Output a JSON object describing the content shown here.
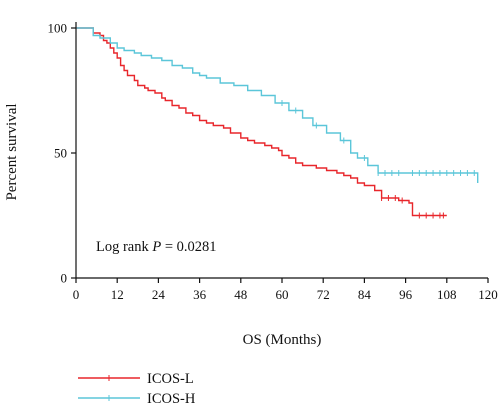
{
  "chart_data": {
    "type": "line",
    "subtype": "kaplan-meier",
    "title": "",
    "xlabel": "OS (Months)",
    "ylabel": "Percent survival",
    "xlim": [
      0,
      120
    ],
    "ylim": [
      0,
      100
    ],
    "xticks": [
      "0",
      "12",
      "24",
      "36",
      "48",
      "60",
      "72",
      "84",
      "96",
      "108",
      "120"
    ],
    "yticks": [
      "0",
      "50",
      "100"
    ],
    "grid": false,
    "legend_position": "bottom-left",
    "annotation": {
      "prefix": "Log rank ",
      "italic": "P",
      "suffix": " = 0.0281"
    },
    "series": [
      {
        "name": "ICOS-L",
        "color": "#e8262b",
        "x": [
          0,
          4,
          5,
          7,
          8,
          9,
          10,
          11,
          12,
          13,
          14,
          15,
          17,
          18,
          20,
          21,
          23,
          25,
          26,
          28,
          30,
          32,
          34,
          36,
          38,
          40,
          43,
          45,
          48,
          50,
          52,
          55,
          57,
          59,
          60,
          62,
          64,
          66,
          70,
          73,
          76,
          78,
          80,
          82,
          84,
          87,
          89,
          94,
          97,
          98,
          108
        ],
        "y": [
          100,
          100,
          98,
          97,
          95,
          94,
          92,
          90,
          88,
          85,
          83,
          81,
          79,
          77,
          76,
          75,
          74,
          72,
          71,
          69,
          68,
          66,
          65,
          63,
          62,
          61,
          60,
          58,
          56,
          55,
          54,
          53,
          52,
          51,
          49,
          48,
          46,
          45,
          44,
          43,
          42,
          41,
          40,
          38,
          37,
          35,
          32,
          31,
          30,
          25,
          25
        ],
        "censored_x": [
          89,
          91,
          93,
          95,
          100,
          102,
          104,
          106,
          107
        ]
      },
      {
        "name": "ICOS-H",
        "color": "#5bc6d9",
        "x": [
          0,
          4,
          5,
          7,
          10,
          12,
          14,
          17,
          19,
          22,
          25,
          28,
          31,
          34,
          36,
          38,
          42,
          46,
          50,
          54,
          58,
          62,
          66,
          69,
          73,
          77,
          80,
          82,
          85,
          88,
          117
        ],
        "y": [
          100,
          100,
          97,
          96,
          94,
          92,
          91,
          90,
          89,
          88,
          87,
          85,
          84,
          82,
          81,
          80,
          78,
          77,
          75,
          73,
          70,
          67,
          64,
          61,
          58,
          55,
          50,
          48,
          45,
          42,
          38
        ],
        "censored_x": [
          60,
          64,
          70,
          78,
          84,
          88,
          90,
          92,
          94,
          98,
          100,
          102,
          104,
          106,
          108,
          110,
          112,
          114,
          116
        ]
      }
    ]
  }
}
